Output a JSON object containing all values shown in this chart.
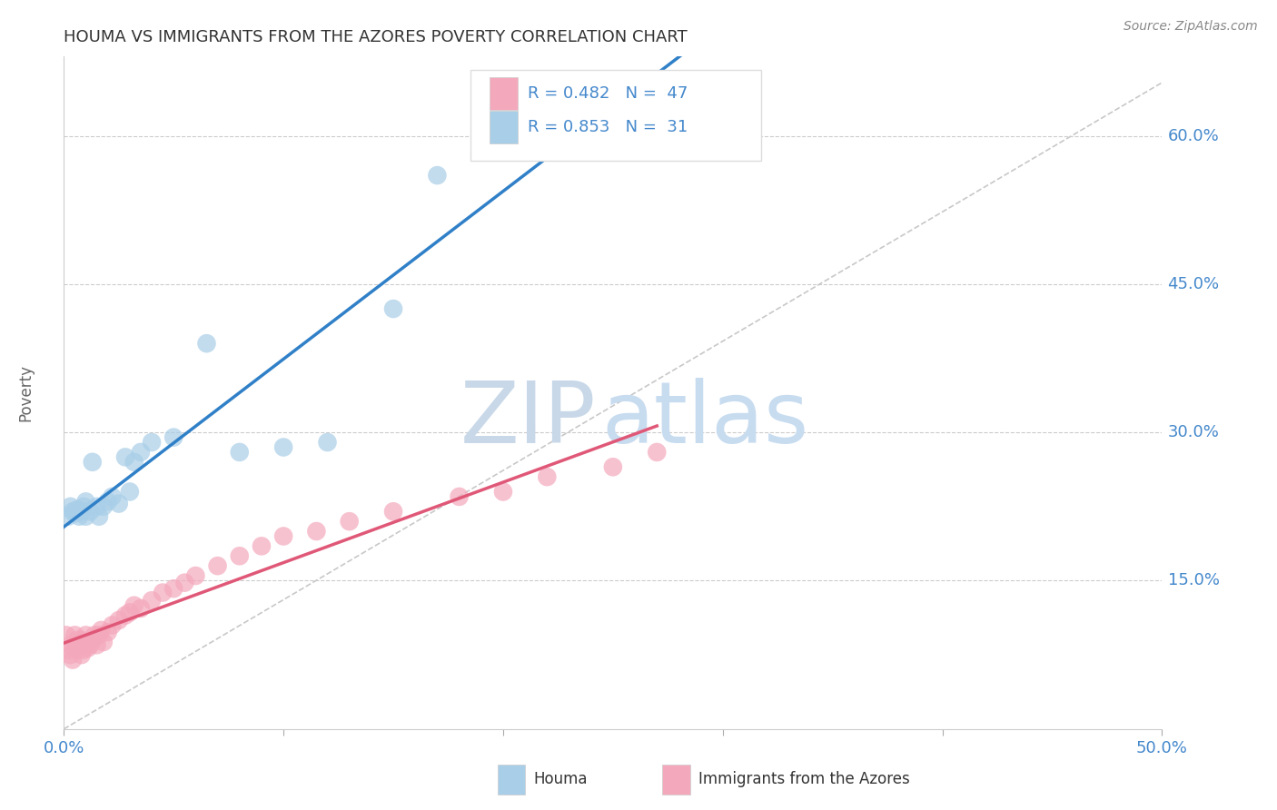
{
  "title": "HOUMA VS IMMIGRANTS FROM THE AZORES POVERTY CORRELATION CHART",
  "source": "Source: ZipAtlas.com",
  "ylabel": "Poverty",
  "xlim": [
    0.0,
    0.5
  ],
  "ylim": [
    0.0,
    0.68
  ],
  "xtick_positions": [
    0.0,
    0.1,
    0.2,
    0.3,
    0.4,
    0.5
  ],
  "xtick_labels": [
    "0.0%",
    "",
    "",
    "",
    "",
    "50.0%"
  ],
  "ytick_positions": [
    0.15,
    0.3,
    0.45,
    0.6
  ],
  "ytick_labels": [
    "15.0%",
    "30.0%",
    "45.0%",
    "60.0%"
  ],
  "houma_R": 0.853,
  "houma_N": 31,
  "azores_R": 0.482,
  "azores_N": 47,
  "houma_color": "#A8CEE8",
  "azores_color": "#F4A8BC",
  "houma_line_color": "#3080C8",
  "azores_line_color": "#E05878",
  "ref_line_color": "#C8C8C8",
  "background_color": "#FFFFFF",
  "grid_color": "#CCCCCC",
  "title_color": "#333333",
  "axis_label_color": "#4488CC",
  "watermark_zip": "ZIP",
  "watermark_atlas": "atlas",
  "watermark_zip_color": "#C8D8E8",
  "watermark_atlas_color": "#C8DCF0",
  "houma_scatter_x": [
    0.002,
    0.003,
    0.004,
    0.005,
    0.006,
    0.007,
    0.008,
    0.009,
    0.01,
    0.01,
    0.012,
    0.013,
    0.015,
    0.016,
    0.018,
    0.02,
    0.022,
    0.025,
    0.028,
    0.03,
    0.032,
    0.035,
    0.04,
    0.05,
    0.065,
    0.08,
    0.1,
    0.12,
    0.15,
    0.17,
    0.2
  ],
  "houma_scatter_y": [
    0.215,
    0.225,
    0.22,
    0.218,
    0.222,
    0.215,
    0.22,
    0.225,
    0.215,
    0.23,
    0.22,
    0.27,
    0.225,
    0.215,
    0.225,
    0.23,
    0.235,
    0.228,
    0.275,
    0.24,
    0.27,
    0.28,
    0.29,
    0.295,
    0.39,
    0.28,
    0.285,
    0.29,
    0.425,
    0.56,
    0.62
  ],
  "azores_scatter_x": [
    0.001,
    0.002,
    0.003,
    0.003,
    0.004,
    0.005,
    0.005,
    0.006,
    0.006,
    0.007,
    0.008,
    0.008,
    0.009,
    0.01,
    0.01,
    0.011,
    0.012,
    0.013,
    0.014,
    0.015,
    0.016,
    0.017,
    0.018,
    0.02,
    0.022,
    0.025,
    0.028,
    0.03,
    0.032,
    0.035,
    0.04,
    0.045,
    0.05,
    0.055,
    0.06,
    0.07,
    0.08,
    0.09,
    0.1,
    0.115,
    0.13,
    0.15,
    0.18,
    0.2,
    0.22,
    0.25,
    0.27
  ],
  "azores_scatter_y": [
    0.095,
    0.08,
    0.075,
    0.085,
    0.07,
    0.085,
    0.095,
    0.08,
    0.09,
    0.085,
    0.075,
    0.09,
    0.08,
    0.095,
    0.088,
    0.082,
    0.085,
    0.09,
    0.095,
    0.085,
    0.095,
    0.1,
    0.088,
    0.098,
    0.105,
    0.11,
    0.115,
    0.118,
    0.125,
    0.122,
    0.13,
    0.138,
    0.142,
    0.148,
    0.155,
    0.165,
    0.175,
    0.185,
    0.195,
    0.2,
    0.21,
    0.22,
    0.235,
    0.24,
    0.255,
    0.265,
    0.28
  ]
}
